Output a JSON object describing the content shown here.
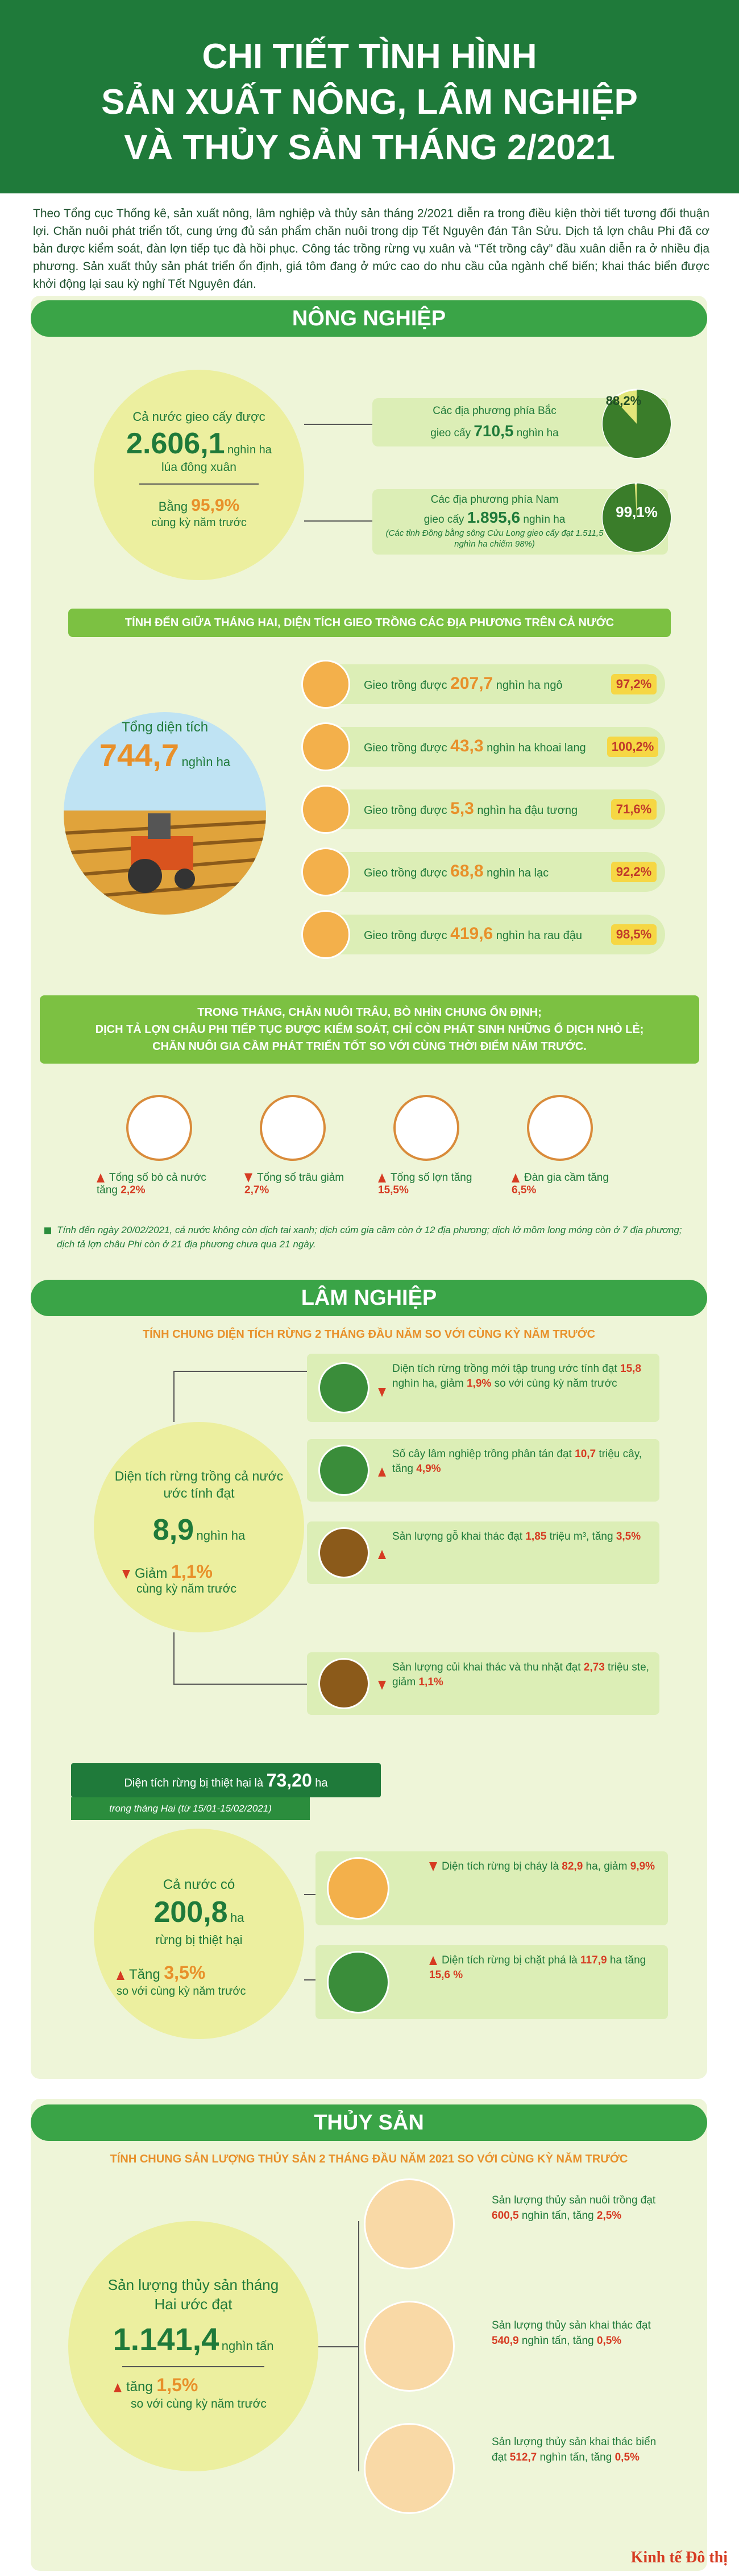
{
  "header": {
    "title_line1": "CHI TIẾT TÌNH HÌNH",
    "title_line2": "SẢN XUẤT NÔNG, LÂM NGHIỆP",
    "title_line3": "VÀ THỦY SẢN THÁNG 2/2021"
  },
  "intro": "Theo Tổng cục Thống kê, sản xuất nông, lâm nghiệp và thủy sản tháng 2/2021 diễn ra trong điều kiện thời tiết tương đối thuận lợi. Chăn nuôi phát triển tốt, cung ứng đủ sản phẩm chăn nuôi trong dịp Tết Nguyên đán Tân Sửu. Dịch tả lợn châu Phi đã cơ bản được kiểm soát, đàn lợn tiếp tục đà hồi phục. Công tác trồng rừng vụ xuân và “Tết trồng cây” đầu xuân diễn ra ở nhiều địa phương. Sản xuất thủy sản phát triển ổn định, giá tôm đang ở mức cao do nhu cầu của ngành chế biến; khai thác biển được khởi động lại sau kỳ nghỉ Tết Nguyên đán.",
  "agriculture": {
    "title": "NÔNG NGHIỆP",
    "sown_label": "Cả nước gieo cấy được",
    "sown_value": "2.606,1",
    "sown_unit": "nghìn ha",
    "sown_sub": "lúa đông xuân",
    "equal_label": "Bằng",
    "equal_value": "95,9%",
    "equal_sub": "cùng kỳ năm trước",
    "north_label": "Các địa phương phía Bắc",
    "north_sown": "gieo cấy",
    "north_value": "710,5",
    "north_unit": "nghìn ha",
    "north_pct": "88,2%",
    "north_pct_value": 88.2,
    "south_label": "Các địa phương phía Nam",
    "south_sown": "gieo cấy",
    "south_value": "1.895,6",
    "south_unit": "nghìn ha",
    "south_note": "(Các tỉnh Đồng bằng sông Cửu Long gieo cấy đạt 1.511,5 nghìn ha chiếm 98%)",
    "south_pct": "99,1%",
    "south_pct_value": 99.1,
    "mid_month_band": "TÍNH ĐẾN GIỮA THÁNG HAI, DIỆN TÍCH GIEO TRỒNG CÁC ĐỊA PHƯƠNG TRÊN CẢ NƯỚC",
    "total_label": "Tổng diện tích",
    "total_value": "744,7",
    "total_unit": "nghìn ha",
    "crops": [
      {
        "prefix": "Gieo trồng được",
        "value": "207,7",
        "suffix": "nghìn ha ngô",
        "pct": "97,2%",
        "icon": "corn-icon"
      },
      {
        "prefix": "Gieo trồng được",
        "value": "43,3",
        "suffix": "nghìn ha khoai lang",
        "pct": "100,2%",
        "icon": "sweet-potato-icon"
      },
      {
        "prefix": "Gieo trồng được",
        "value": "5,3",
        "suffix": "nghìn ha đậu tương",
        "pct": "71,6%",
        "icon": "soybean-icon"
      },
      {
        "prefix": "Gieo trồng được",
        "value": "68,8",
        "suffix": "nghìn ha lạc",
        "pct": "92,2%",
        "icon": "peanut-icon"
      },
      {
        "prefix": "Gieo trồng được",
        "value": "419,6",
        "suffix": "nghìn ha rau đậu",
        "pct": "98,5%",
        "icon": "vegetable-icon"
      }
    ],
    "livestock_band1": "TRONG THÁNG, CHĂN NUÔI TRÂU, BÒ NHÌN CHUNG ỔN ĐỊNH;",
    "livestock_band2": "DỊCH TẢ LỢN CHÂU PHI TIẾP TỤC ĐƯỢC KIỂM SOÁT, CHỈ CÒN PHÁT SINH NHỮNG Ổ DỊCH NHỎ LẺ;",
    "livestock_band3": "CHĂN NUÔI GIA CẦM PHÁT TRIỂN TỐT SO VỚI CÙNG THỜI ĐIỂM NĂM TRƯỚC.",
    "animals": [
      {
        "label": "Tổng số bò cả nước tăng",
        "value": "2,2%",
        "dir": "up",
        "icon": "cow-icon"
      },
      {
        "label": "Tổng số trâu giảm",
        "value": "2,7%",
        "dir": "down",
        "icon": "buffalo-icon"
      },
      {
        "label": "Tổng số lợn tăng",
        "value": "15,5%",
        "dir": "up",
        "icon": "pig-icon"
      },
      {
        "label": "Đàn gia cầm tăng",
        "value": "6,5%",
        "dir": "up",
        "icon": "chicken-icon"
      }
    ],
    "disease_note": "Tính đến ngày 20/02/2021, cả nước không còn dịch tai xanh; dịch cúm gia cầm còn ở 12 địa phương; dịch lở mồm long móng còn ở 7 địa phương; dịch tả lợn châu Phi còn ở 21 địa phương chưa qua 21 ngày."
  },
  "forestry": {
    "title": "LÂM NGHIỆP",
    "subtitle": "TÍNH CHUNG DIỆN TÍCH RỪNG 2 THÁNG ĐẦU NĂM SO VỚI CÙNG KỲ NĂM TRƯỚC",
    "area_label": "Diện tích rừng trồng cả nước ước tính đạt",
    "area_value": "8,9",
    "area_unit": "nghìn ha",
    "area_change_label": "Giảm",
    "area_change_value": "1,1%",
    "area_change_sub": "cùng kỳ năm trước",
    "items": [
      {
        "text1": "Diện tích rừng trồng mới tập trung ước tính đạt",
        "value": "15,8",
        "text2": "nghìn ha, giảm",
        "pct": "1,9%",
        "text3": "so với cùng kỳ năm trước",
        "icon": "forest-icon",
        "dir": "down"
      },
      {
        "text1": "Số cây lâm nghiệp trồng phân tán đạt",
        "value": "10,7",
        "text2": "triệu cây, tăng",
        "pct": "4,9%",
        "text3": "",
        "icon": "seedling-icon",
        "dir": "up"
      },
      {
        "text1": "Sản lượng gỗ khai thác đạt",
        "value": "1,85",
        "text2": "triệu m³, tăng",
        "pct": "3,5%",
        "text3": "",
        "icon": "timber-icon",
        "dir": "up"
      },
      {
        "text1": "Sản lượng củi khai thác và thu nhặt đạt",
        "value": "2,73",
        "text2": "triệu ste, giảm",
        "pct": "1,1%",
        "text3": "",
        "icon": "firewood-icon",
        "dir": "down"
      }
    ],
    "damage_label": "Diện tích rừng bị thiệt hại là",
    "damage_value": "73,20",
    "damage_unit": "ha",
    "damage_period": "trong tháng Hai (từ 15/01-15/02/2021)",
    "damaged_label": "Cả nước có",
    "damaged_value": "200,8",
    "damaged_unit": "ha",
    "damaged_sub": "rừng bị thiệt hại",
    "damaged_change_label": "Tăng",
    "damaged_change_value": "3,5%",
    "damaged_change_sub": "so với cùng kỳ năm trước",
    "fire_text": "Diện tích rừng bị cháy là",
    "fire_value": "82,9",
    "fire_text2": "ha, giảm",
    "fire_pct": "9,9%",
    "cut_text": "Diện tích rừng bị chặt phá là",
    "cut_value": "117,9",
    "cut_text2": "ha tăng",
    "cut_pct": "15,6 %"
  },
  "fishery": {
    "title": "THỦY SẢN",
    "subtitle": "TÍNH CHUNG SẢN LƯỢNG THỦY SẢN 2 THÁNG ĐẦU NĂM 2021 SO VỚI CÙNG KỲ NĂM TRƯỚC",
    "total_label": "Sản lượng thủy sản tháng Hai ước đạt",
    "total_value": "1.141,4",
    "total_unit": "nghìn tấn",
    "total_change_label": "tăng",
    "total_change_value": "1,5%",
    "total_change_sub": "so với cùng kỳ năm trước",
    "items": [
      {
        "text1": "Sản lượng thủy sản nuôi trồng đạt",
        "value": "600,5",
        "text2": "nghìn tấn, tăng",
        "pct": "2,5%",
        "icon": "fish-icon"
      },
      {
        "text1": "Sản lượng thủy sản khai thác đạt",
        "value": "540,9",
        "text2": "nghìn tấn, tăng",
        "pct": "0,5%",
        "icon": "marine-fish-icon"
      },
      {
        "text1": "Sản lượng thủy sản khai thác biển đạt",
        "value": "512,7",
        "text2": "nghìn tấn, tăng",
        "pct": "0,5%",
        "icon": "shrimp-icon"
      }
    ]
  },
  "footer": {
    "logo": "Kinh tế Đô thị"
  }
}
